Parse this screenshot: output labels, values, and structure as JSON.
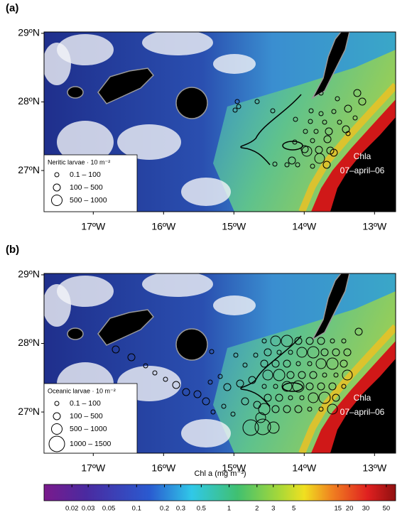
{
  "map": {
    "xlim": [
      -17.7,
      -12.7
    ],
    "ylim": [
      26.4,
      29.02
    ],
    "xticks": [
      {
        "value": -17,
        "label": "17ºW"
      },
      {
        "value": -16,
        "label": "16ºW"
      },
      {
        "value": -15,
        "label": "15ºW"
      },
      {
        "value": -14,
        "label": "14ºW"
      },
      {
        "value": -13,
        "label": "13ºW"
      }
    ],
    "yticks": [
      {
        "value": 29,
        "label": "29ºN"
      },
      {
        "value": 28,
        "label": "28ºN"
      },
      {
        "value": 27,
        "label": "27ºN"
      }
    ]
  },
  "panels": [
    {
      "label": "(a)",
      "legend": {
        "title": "Neritic larvae · 10 m⁻²",
        "entries": [
          "0.1 – 100",
          "100 – 500",
          "500 – 1000"
        ]
      },
      "annotation": [
        "Chla",
        "07–april–06"
      ]
    },
    {
      "label": "(b)",
      "legend": {
        "title": "Oceanic larvae · 10 m⁻²",
        "entries": [
          "0.1 – 100",
          "100 – 500",
          "500 – 1000",
          "1000 – 1500"
        ]
      },
      "annotation": [
        "Chla",
        "07–april–06"
      ]
    }
  ],
  "colorbar": {
    "label": "Chl a (mg m⁻³)",
    "scale": "log",
    "lim": [
      0.01,
      63
    ],
    "ticks": [
      0.02,
      0.03,
      0.05,
      0.1,
      0.2,
      0.3,
      0.5,
      1,
      2,
      3,
      5,
      15,
      20,
      30,
      50
    ]
  }
}
